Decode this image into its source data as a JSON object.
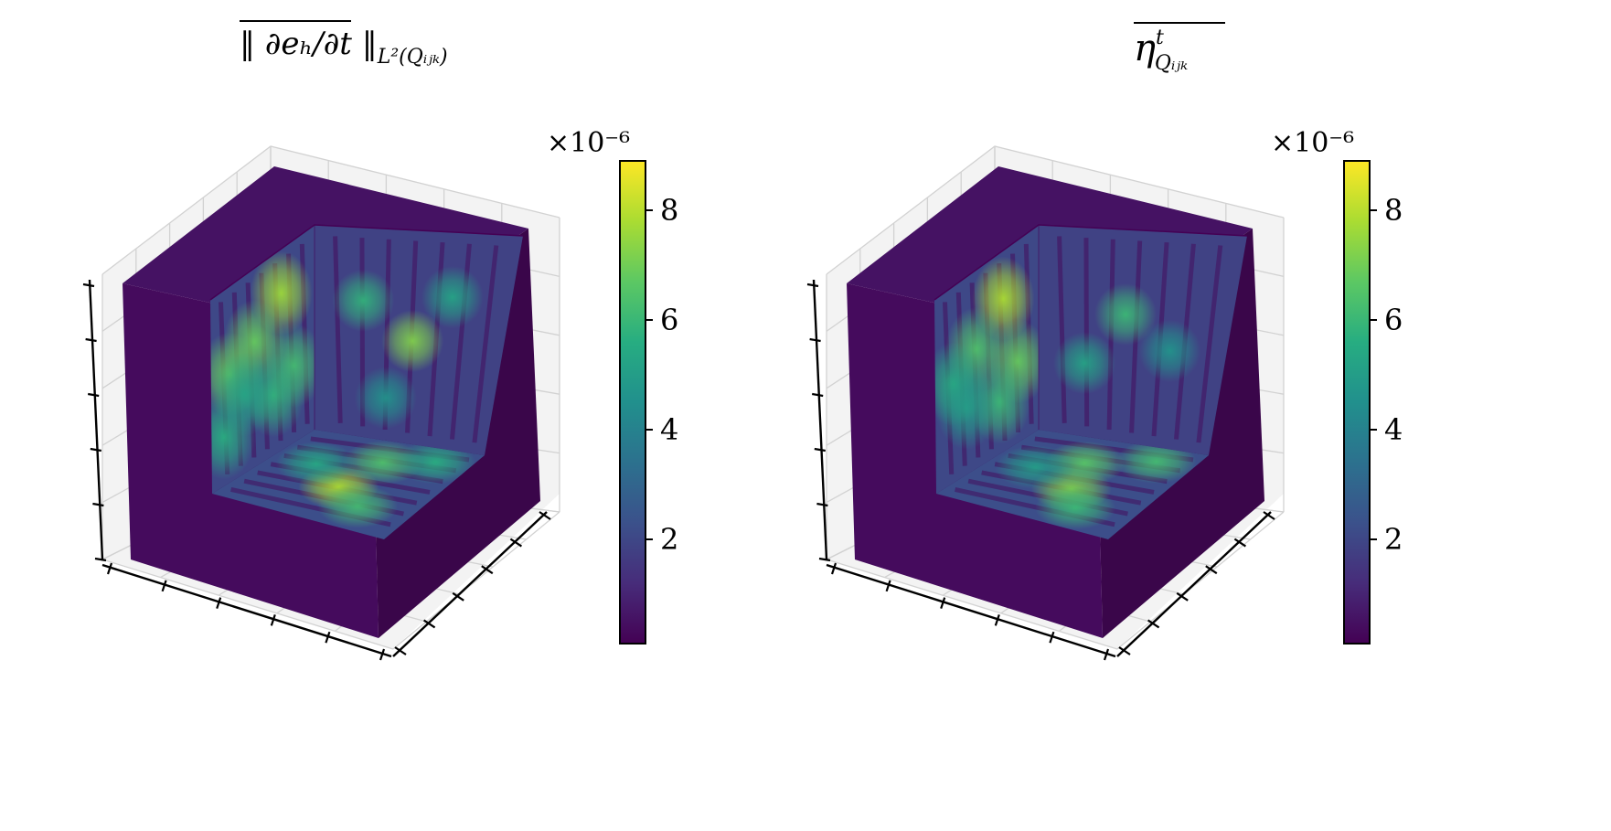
{
  "colormap": {
    "name": "viridis",
    "stops": [
      "#440154",
      "#472c7a",
      "#3b518b",
      "#2c718e",
      "#21908d",
      "#27ad81",
      "#5cc863",
      "#aadc32",
      "#fde725"
    ]
  },
  "chart_data": [
    {
      "type": "heatmap",
      "subtype": "3d-voxel-cutaway",
      "title": "||∂e_h/∂t||_{L²(Q_ijk)} (overlined)",
      "title_parts": {
        "main": "‖ ∂eₕ/∂t ‖",
        "subscript": "L²(Qᵢⱼₖ)"
      },
      "xlabel": "",
      "ylabel": "",
      "zlabel": "",
      "colorbar": {
        "multiplier": "×10⁻⁶",
        "ticks": [
          2,
          4,
          6,
          8
        ],
        "range": [
          0.1,
          8.9
        ],
        "colormap": "viridis"
      },
      "blobs": {
        "back_wall": [
          [
            0.68,
            0.22,
            7.6
          ],
          [
            0.18,
            0.45,
            6.8
          ],
          [
            0.42,
            0.37,
            6.8
          ],
          [
            0.8,
            0.62,
            6.2
          ],
          [
            0.12,
            0.75,
            5.6
          ],
          [
            0.6,
            0.7,
            5.8
          ],
          [
            0.32,
            0.6,
            5.2
          ]
        ],
        "side_wall": [
          [
            0.52,
            0.52,
            7.2
          ],
          [
            0.25,
            0.35,
            5.8
          ],
          [
            0.7,
            0.3,
            5.2
          ],
          [
            0.4,
            0.8,
            4.6
          ]
        ],
        "floor": [
          [
            0.4,
            0.5,
            7.8
          ],
          [
            0.75,
            0.55,
            6.4
          ],
          [
            0.25,
            0.7,
            6.2
          ],
          [
            0.6,
            0.25,
            5.4
          ],
          [
            0.85,
            0.8,
            5.6
          ]
        ]
      },
      "grid": true
    },
    {
      "type": "heatmap",
      "subtype": "3d-voxel-cutaway",
      "title": "η^t_{Q_ijk} (overlined)",
      "title_parts": {
        "main": "η",
        "superscript": "t",
        "subscript": "Qᵢⱼₖ"
      },
      "xlabel": "",
      "ylabel": "",
      "zlabel": "",
      "colorbar": {
        "multiplier": "×10⁻⁶",
        "ticks": [
          2,
          4,
          6,
          8
        ],
        "range": [
          0.1,
          8.9
        ],
        "colormap": "viridis"
      },
      "blobs": {
        "back_wall": [
          [
            0.66,
            0.24,
            7.8
          ],
          [
            0.4,
            0.4,
            6.4
          ],
          [
            0.8,
            0.6,
            6.8
          ],
          [
            0.18,
            0.5,
            5.6
          ],
          [
            0.62,
            0.74,
            6.0
          ],
          [
            0.3,
            0.66,
            5.0
          ]
        ],
        "side_wall": [
          [
            0.45,
            0.4,
            6.0
          ],
          [
            0.25,
            0.65,
            5.2
          ],
          [
            0.7,
            0.55,
            4.6
          ]
        ],
        "floor": [
          [
            0.4,
            0.55,
            7.2
          ],
          [
            0.7,
            0.45,
            6.6
          ],
          [
            0.22,
            0.68,
            6.0
          ],
          [
            0.85,
            0.78,
            6.2
          ],
          [
            0.55,
            0.25,
            5.0
          ]
        ]
      },
      "grid": true
    }
  ]
}
